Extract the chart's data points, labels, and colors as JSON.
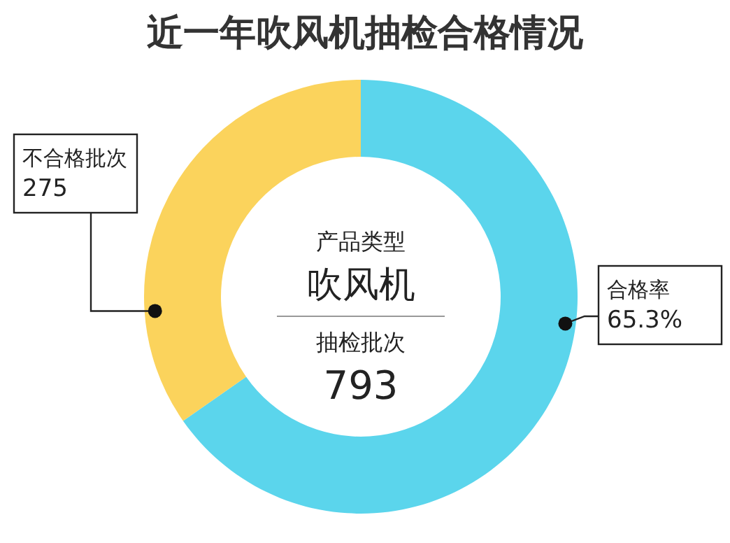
{
  "chart_data": {
    "type": "donut",
    "title": "近一年吹风机抽检合格情况",
    "categories": [
      "不合格批次",
      "合格率"
    ],
    "values": [
      34.7,
      65.3
    ],
    "value_labels": [
      null,
      "65.3%"
    ],
    "colors": [
      "#fbd35c",
      "#5bd5ec"
    ],
    "annotations": [
      "产品类型",
      "吹风机",
      "抽检批次",
      "793",
      "275"
    ]
  }
}
